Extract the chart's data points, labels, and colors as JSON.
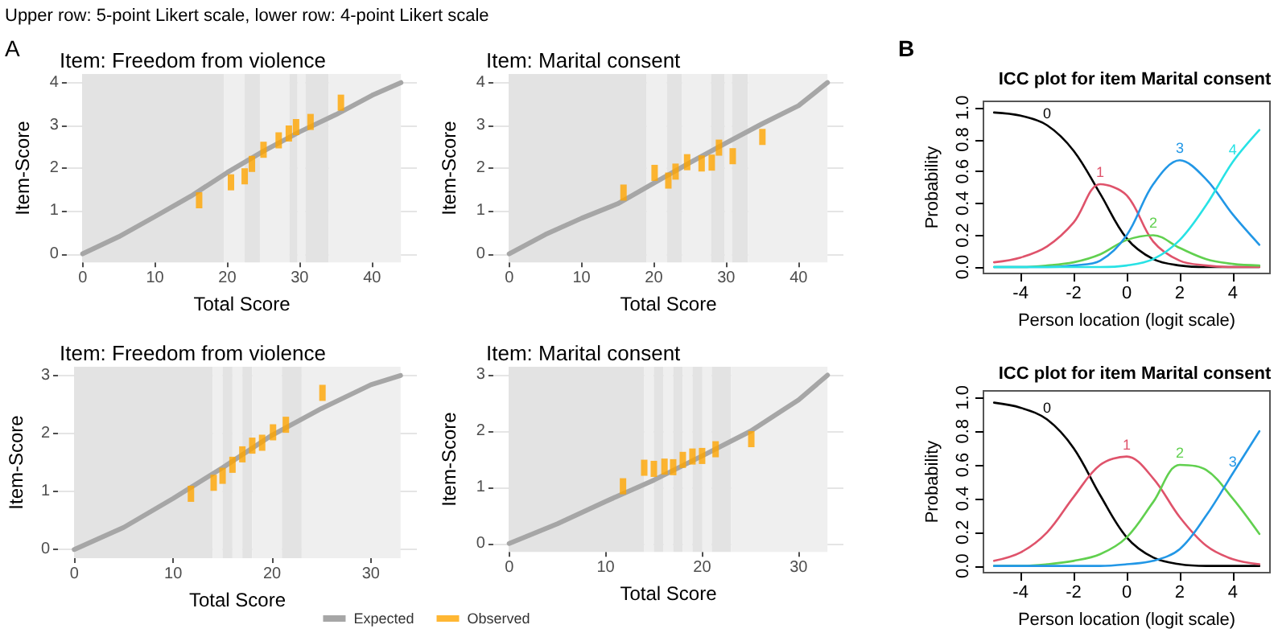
{
  "chart_data": [
    {
      "type": "line",
      "title": "Item: Freedom from violence",
      "xlabel": "Total Score",
      "ylabel": "Item-Score",
      "annotations": [
        "Upper row: 5-point Likert scale, lower row: 4-point Likert scale",
        "A"
      ],
      "xlim": [
        -2.2,
        46.2
      ],
      "xticks": [
        0,
        10,
        20,
        30,
        40
      ],
      "ylim": [
        -0.2,
        4.2
      ],
      "yticks": [
        0,
        1,
        2,
        3,
        4
      ],
      "grid": true,
      "marker": "none",
      "bands": [
        {
          "axis": "x",
          "from": 0,
          "to": 19.5,
          "color": "#e3e3e3"
        },
        {
          "axis": "x",
          "from": 19.5,
          "to": 22.4,
          "color": "#efefef"
        },
        {
          "axis": "x",
          "from": 22.4,
          "to": 24.5,
          "color": "#e3e3e3"
        },
        {
          "axis": "x",
          "from": 24.5,
          "to": 28.6,
          "color": "#efefef"
        },
        {
          "axis": "x",
          "from": 28.6,
          "to": 29.7,
          "color": "#e3e3e3"
        },
        {
          "axis": "x",
          "from": 29.7,
          "to": 30.8,
          "color": "#efefef"
        },
        {
          "axis": "x",
          "from": 30.8,
          "to": 34,
          "color": "#e3e3e3"
        },
        {
          "axis": "x",
          "from": 34,
          "to": 44,
          "color": "#efefef"
        }
      ],
      "series": [
        {
          "type": "line",
          "color": "#a6a6a6",
          "x": [
            0,
            5,
            10,
            15,
            20,
            25,
            30,
            35,
            40,
            44
          ],
          "values": [
            0,
            0.4,
            0.87,
            1.35,
            1.9,
            2.4,
            2.85,
            3.25,
            3.7,
            4
          ]
        },
        {
          "type": "scatter",
          "color": "#ffa500",
          "x": [
            16.1,
            20.5,
            22.4,
            23.4,
            25,
            27.1,
            28.5,
            29.5,
            31.5,
            35.7
          ],
          "values": [
            1.25,
            1.67,
            1.81,
            2.1,
            2.43,
            2.65,
            2.81,
            2.96,
            3.08,
            3.53
          ],
          "marker": "square"
        }
      ]
    },
    {
      "type": "line",
      "title": "Item: Marital consent",
      "xlabel": "Total Score",
      "ylabel": "Item-Score",
      "xlim": [
        -2.2,
        46.2
      ],
      "xticks": [
        0,
        10,
        20,
        30,
        40
      ],
      "ylim": [
        -0.2,
        4.2
      ],
      "yticks": [
        0,
        1,
        2,
        3,
        4
      ],
      "grid": true,
      "marker": "none",
      "bands": [
        {
          "axis": "x",
          "from": 0,
          "to": 19,
          "color": "#e3e3e3"
        },
        {
          "axis": "x",
          "from": 19,
          "to": 21.8,
          "color": "#efefef"
        },
        {
          "axis": "x",
          "from": 21.8,
          "to": 23.9,
          "color": "#e3e3e3"
        },
        {
          "axis": "x",
          "from": 23.9,
          "to": 27.9,
          "color": "#efefef"
        },
        {
          "axis": "x",
          "from": 27.9,
          "to": 29.8,
          "color": "#e3e3e3"
        },
        {
          "axis": "x",
          "from": 29.8,
          "to": 30.8,
          "color": "#efefef"
        },
        {
          "axis": "x",
          "from": 30.8,
          "to": 33,
          "color": "#e3e3e3"
        },
        {
          "axis": "x",
          "from": 33,
          "to": 44,
          "color": "#efefef"
        }
      ],
      "series": [
        {
          "type": "line",
          "color": "#a6a6a6",
          "x": [
            0,
            5,
            10,
            15,
            20,
            25,
            30,
            35,
            40,
            44
          ],
          "values": [
            0,
            0.45,
            0.83,
            1.17,
            1.65,
            2.13,
            2.59,
            3.04,
            3.46,
            4
          ]
        },
        {
          "type": "scatter",
          "color": "#ffa500",
          "x": [
            15.8,
            20.1,
            22,
            23,
            24.6,
            26.6,
            28,
            29,
            30.9,
            35
          ],
          "values": [
            1.43,
            1.89,
            1.71,
            1.92,
            2.14,
            2.11,
            2.13,
            2.48,
            2.28,
            2.73
          ],
          "marker": "square"
        }
      ]
    },
    {
      "type": "line",
      "title": "ICC plot for item Marital consent",
      "xlabel": "Person location (logit scale)",
      "ylabel": "Probability",
      "annotations": [
        "B"
      ],
      "xlim": [
        -5.4,
        5.4
      ],
      "xticks": [
        -4,
        -2,
        0,
        2,
        4
      ],
      "ylim": [
        -0.04,
        1.04
      ],
      "yticks": [
        {
          "value": 0,
          "label": "0.0"
        },
        {
          "value": 0.2,
          "label": "0.2"
        },
        {
          "value": 0.4,
          "label": "0.4"
        },
        {
          "value": 0.6,
          "label": "0.6"
        },
        {
          "value": 0.8,
          "label": "0.8"
        },
        {
          "value": 1,
          "label": "1.0"
        }
      ],
      "grid": false,
      "marker": "none",
      "x": [
        -5,
        -4,
        -3,
        -2,
        -1,
        0,
        1,
        2,
        3,
        4,
        5
      ],
      "series": [
        {
          "name": "0",
          "color": "#000000",
          "values": [
            0.97,
            0.95,
            0.89,
            0.73,
            0.46,
            0.18,
            0.05,
            0.01,
            0,
            0,
            0
          ]
        },
        {
          "name": "1",
          "color": "#df536b",
          "values": [
            0.03,
            0.06,
            0.13,
            0.28,
            0.52,
            0.45,
            0.16,
            0.04,
            0.01,
            0,
            0
          ]
        },
        {
          "name": "2",
          "color": "#61d04f",
          "values": [
            0,
            0,
            0.01,
            0.03,
            0.08,
            0.17,
            0.2,
            0.12,
            0.05,
            0.02,
            0.01
          ]
        },
        {
          "name": "3",
          "color": "#2297e6",
          "values": [
            0,
            0,
            0,
            0.01,
            0.04,
            0.2,
            0.52,
            0.67,
            0.55,
            0.33,
            0.14
          ]
        },
        {
          "name": "4",
          "color": "#28e2e5",
          "values": [
            0,
            0,
            0,
            0,
            0,
            0.01,
            0.05,
            0.17,
            0.39,
            0.66,
            0.86
          ]
        }
      ]
    },
    {
      "type": "line",
      "title": "Item: Freedom from violence",
      "xlabel": "Total Score",
      "ylabel": "Item-Score",
      "xlim": [
        -1.65,
        34.65
      ],
      "xticks": [
        0,
        10,
        20,
        30
      ],
      "ylim": [
        -0.15,
        3.15
      ],
      "yticks": [
        0,
        1,
        2,
        3
      ],
      "grid": true,
      "marker": "none",
      "legend": "bottom",
      "bands": [
        {
          "axis": "x",
          "from": 0,
          "to": 14,
          "color": "#e3e3e3"
        },
        {
          "axis": "x",
          "from": 14,
          "to": 15,
          "color": "#efefef"
        },
        {
          "axis": "x",
          "from": 15,
          "to": 16,
          "color": "#e3e3e3"
        },
        {
          "axis": "x",
          "from": 16,
          "to": 17,
          "color": "#efefef"
        },
        {
          "axis": "x",
          "from": 17,
          "to": 18,
          "color": "#e3e3e3"
        },
        {
          "axis": "x",
          "from": 18,
          "to": 21,
          "color": "#efefef"
        },
        {
          "axis": "x",
          "from": 21,
          "to": 23,
          "color": "#e3e3e3"
        },
        {
          "axis": "x",
          "from": 23,
          "to": 33,
          "color": "#efefef"
        }
      ],
      "series": [
        {
          "type": "line",
          "name": "Expected",
          "color": "#a6a6a6",
          "x": [
            0,
            5,
            10,
            15,
            20,
            25,
            30,
            33
          ],
          "values": [
            0,
            0.38,
            0.88,
            1.41,
            1.97,
            2.43,
            2.84,
            3
          ]
        },
        {
          "type": "scatter",
          "name": "Observed",
          "color": "#ffa500",
          "x": [
            11.8,
            14.1,
            15,
            16,
            17,
            18,
            19,
            20.1,
            21.4,
            25.1
          ],
          "values": [
            0.96,
            1.15,
            1.27,
            1.46,
            1.64,
            1.79,
            1.84,
            2.02,
            2.15,
            2.7
          ],
          "marker": "square"
        }
      ]
    },
    {
      "type": "line",
      "title": "Item: Marital consent",
      "xlabel": "Total Score",
      "ylabel": "Item-Score",
      "xlim": [
        -1.65,
        34.65
      ],
      "xticks": [
        0,
        10,
        20,
        30
      ],
      "ylim": [
        -0.15,
        3.15
      ],
      "yticks": [
        0,
        1,
        2,
        3
      ],
      "grid": true,
      "marker": "none",
      "bands": [
        {
          "axis": "x",
          "from": 0,
          "to": 14,
          "color": "#e3e3e3"
        },
        {
          "axis": "x",
          "from": 14,
          "to": 15,
          "color": "#efefef"
        },
        {
          "axis": "x",
          "from": 15,
          "to": 16,
          "color": "#e3e3e3"
        },
        {
          "axis": "x",
          "from": 16,
          "to": 17,
          "color": "#efefef"
        },
        {
          "axis": "x",
          "from": 17,
          "to": 18,
          "color": "#e3e3e3"
        },
        {
          "axis": "x",
          "from": 18,
          "to": 19,
          "color": "#efefef"
        },
        {
          "axis": "x",
          "from": 19,
          "to": 20,
          "color": "#e3e3e3"
        },
        {
          "axis": "x",
          "from": 20,
          "to": 21,
          "color": "#efefef"
        },
        {
          "axis": "x",
          "from": 21,
          "to": 23,
          "color": "#e3e3e3"
        },
        {
          "axis": "x",
          "from": 23,
          "to": 33,
          "color": "#efefef"
        }
      ],
      "series": [
        {
          "type": "line",
          "color": "#a6a6a6",
          "x": [
            0,
            5,
            10,
            15,
            20,
            25,
            30,
            33
          ],
          "values": [
            0,
            0.35,
            0.75,
            1.13,
            1.56,
            2,
            2.56,
            3
          ]
        },
        {
          "type": "scatter",
          "color": "#ffa500",
          "x": [
            11.8,
            14,
            15,
            16.1,
            17,
            18,
            19,
            20,
            21.4,
            25.1
          ],
          "values": [
            1.02,
            1.35,
            1.33,
            1.37,
            1.36,
            1.49,
            1.55,
            1.56,
            1.68,
            1.86
          ],
          "marker": "square"
        }
      ]
    },
    {
      "type": "line",
      "title": "ICC plot for item Marital consent",
      "xlabel": "Person location (logit scale)",
      "ylabel": "Probability",
      "xlim": [
        -5.4,
        5.4
      ],
      "xticks": [
        -4,
        -2,
        0,
        2,
        4
      ],
      "ylim": [
        -0.04,
        1.04
      ],
      "yticks": [
        {
          "value": 0,
          "label": "0.0"
        },
        {
          "value": 0.2,
          "label": "0.2"
        },
        {
          "value": 0.4,
          "label": "0.4"
        },
        {
          "value": 0.6,
          "label": "0.6"
        },
        {
          "value": 0.8,
          "label": "0.8"
        },
        {
          "value": 1,
          "label": "1.0"
        }
      ],
      "grid": false,
      "marker": "none",
      "x": [
        -5,
        -4,
        -3,
        -2,
        -1,
        0,
        1,
        2,
        3,
        4,
        5
      ],
      "series": [
        {
          "name": "0",
          "color": "#000000",
          "values": [
            0.97,
            0.94,
            0.87,
            0.7,
            0.42,
            0.17,
            0.05,
            0.01,
            0,
            0,
            0
          ]
        },
        {
          "name": "1",
          "color": "#df536b",
          "values": [
            0.03,
            0.08,
            0.2,
            0.41,
            0.6,
            0.65,
            0.52,
            0.29,
            0.12,
            0.04,
            0.01
          ]
        },
        {
          "name": "2",
          "color": "#61d04f",
          "values": [
            0,
            0,
            0.01,
            0.03,
            0.07,
            0.17,
            0.38,
            0.6,
            0.57,
            0.4,
            0.19
          ]
        },
        {
          "name": "3",
          "color": "#2297e6",
          "values": [
            0,
            0,
            0,
            0,
            0,
            0.01,
            0.03,
            0.1,
            0.3,
            0.55,
            0.8
          ]
        }
      ]
    }
  ]
}
